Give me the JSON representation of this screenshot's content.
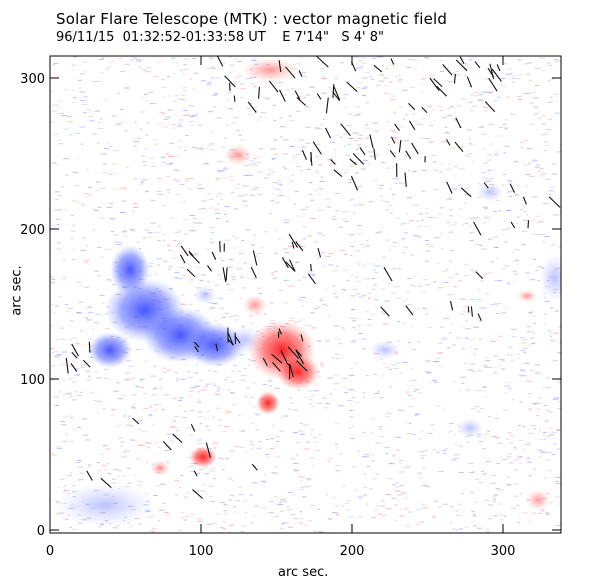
{
  "title": "Solar Flare Telescope (MTK) : vector magnetic field",
  "subtitle": "96/11/15  01:32:52-01:33:58 UT    E 7'14\"   S 4' 8\"",
  "axes": {
    "xlabel": "arc sec.",
    "ylabel": "arc sec.",
    "xlim": [
      0,
      340
    ],
    "ylim": [
      0,
      315
    ],
    "xticks": [
      "0",
      "100",
      "200",
      "300"
    ],
    "yticks": [
      "0",
      "100",
      "200",
      "300"
    ]
  },
  "colors": {
    "negative_polarity": "#4a5cff",
    "positive_polarity": "#ff2a2a",
    "vector": "#111111",
    "frame": "#000000"
  }
}
